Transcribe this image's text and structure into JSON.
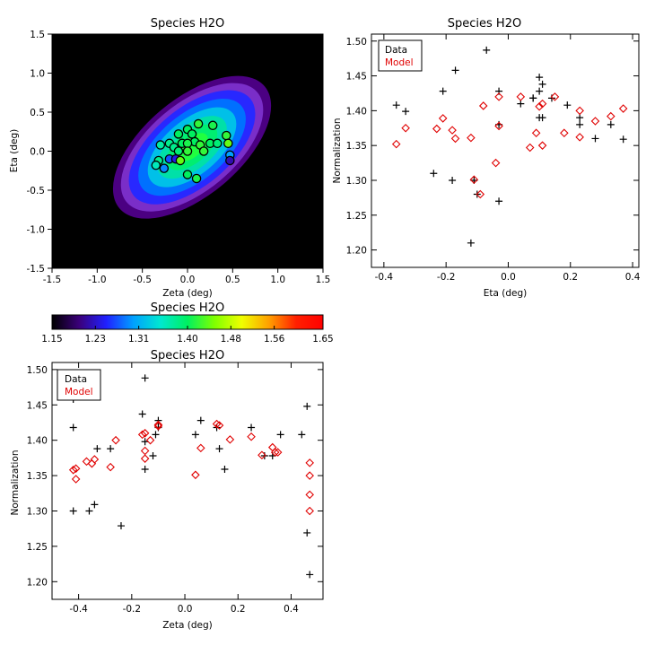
{
  "chart_data": [
    {
      "id": "map",
      "type": "heatmap",
      "title": "Species H2O",
      "xlabel": "Zeta (deg)",
      "ylabel": "Eta (deg)",
      "xlim": [
        -1.5,
        1.5
      ],
      "ylim": [
        -1.5,
        1.5
      ],
      "xticks": [
        -1.5,
        -1.0,
        -0.5,
        0.0,
        0.5,
        1.0,
        1.5
      ],
      "yticks": [
        -1.5,
        -1.0,
        -0.5,
        0.0,
        0.5,
        1.0,
        1.5
      ],
      "xtick_labels": [
        "-1.5",
        "-1.0",
        "-0.5",
        "0.0",
        "0.5",
        "1.0",
        "1.5"
      ],
      "ytick_labels": [
        "-1.5",
        "-1.0",
        "-0.5",
        "0.0",
        "0.5",
        "1.0",
        "1.5"
      ],
      "model": {
        "center": [
          0.05,
          0.05
        ],
        "outer_semi_axes": [
          1.05,
          0.62
        ],
        "angle_deg": 40,
        "levels": [
          {
            "frac": 1.0,
            "color": "#4b0082"
          },
          {
            "frac": 0.9,
            "color": "#7a2ec8"
          },
          {
            "frac": 0.8,
            "color": "#2828ff"
          },
          {
            "frac": 0.68,
            "color": "#0070ff"
          },
          {
            "frac": 0.56,
            "color": "#00c0e8"
          },
          {
            "frac": 0.44,
            "color": "#00e0a8"
          },
          {
            "frac": 0.32,
            "color": "#00ee70"
          },
          {
            "frac": 0.2,
            "color": "#20ff40"
          }
        ]
      },
      "points": [
        {
          "zeta": 0.0,
          "eta": 0.28,
          "value": 1.4
        },
        {
          "zeta": 0.05,
          "eta": 0.22,
          "value": 1.4
        },
        {
          "zeta": 0.12,
          "eta": 0.35,
          "value": 1.42
        },
        {
          "zeta": 0.28,
          "eta": 0.33,
          "value": 1.41
        },
        {
          "zeta": 0.08,
          "eta": 0.12,
          "value": 1.4
        },
        {
          "zeta": 0.14,
          "eta": 0.08,
          "value": 1.42
        },
        {
          "zeta": -0.1,
          "eta": 0.22,
          "value": 1.4
        },
        {
          "zeta": -0.2,
          "eta": 0.1,
          "value": 1.38
        },
        {
          "zeta": -0.3,
          "eta": 0.08,
          "value": 1.37
        },
        {
          "zeta": -0.15,
          "eta": 0.05,
          "value": 1.38
        },
        {
          "zeta": -0.1,
          "eta": 0.0,
          "value": 1.39
        },
        {
          "zeta": -0.06,
          "eta": 0.1,
          "value": 1.4
        },
        {
          "zeta": 0.0,
          "eta": 0.1,
          "value": 1.41
        },
        {
          "zeta": 0.0,
          "eta": 0.0,
          "value": 1.42
        },
        {
          "zeta": 0.18,
          "eta": 0.0,
          "value": 1.42
        },
        {
          "zeta": 0.25,
          "eta": 0.1,
          "value": 1.4
        },
        {
          "zeta": 0.33,
          "eta": 0.1,
          "value": 1.39
        },
        {
          "zeta": 0.43,
          "eta": 0.2,
          "value": 1.42
        },
        {
          "zeta": 0.45,
          "eta": 0.1,
          "value": 1.44
        },
        {
          "zeta": -0.32,
          "eta": -0.12,
          "value": 1.38
        },
        {
          "zeta": -0.35,
          "eta": -0.18,
          "value": 1.36
        },
        {
          "zeta": -0.26,
          "eta": -0.22,
          "value": 1.29
        },
        {
          "zeta": -0.2,
          "eta": -0.1,
          "value": 1.27
        },
        {
          "zeta": -0.13,
          "eta": -0.1,
          "value": 1.24
        },
        {
          "zeta": -0.08,
          "eta": -0.12,
          "value": 1.44
        },
        {
          "zeta": 0.0,
          "eta": -0.3,
          "value": 1.4
        },
        {
          "zeta": 0.1,
          "eta": -0.35,
          "value": 1.41
        },
        {
          "zeta": 0.47,
          "eta": -0.05,
          "value": 1.3
        },
        {
          "zeta": 0.47,
          "eta": -0.12,
          "value": 1.22
        }
      ]
    },
    {
      "id": "colorbar",
      "type": "colorbar",
      "title": "Species H2O",
      "range": [
        1.15,
        1.65
      ],
      "ticks": [
        1.15,
        1.23,
        1.31,
        1.4,
        1.48,
        1.56,
        1.65
      ],
      "tick_labels": [
        "1.15",
        "1.23",
        "1.31",
        "1.40",
        "1.48",
        "1.56",
        "1.65"
      ],
      "colors": [
        "#000000",
        "#3a007a",
        "#2020ff",
        "#00a0ff",
        "#00e8d0",
        "#00f060",
        "#80ff00",
        "#f0ff00",
        "#ffa000",
        "#ff2000",
        "#ff0000"
      ]
    },
    {
      "id": "eta_plot",
      "type": "scatter",
      "title": "Species H2O",
      "xlabel": "Eta (deg)",
      "ylabel": "Normalization",
      "xlim": [
        -0.44,
        0.42
      ],
      "ylim": [
        1.175,
        1.51
      ],
      "xticks": [
        -0.4,
        -0.2,
        0.0,
        0.2,
        0.4
      ],
      "yticks": [
        1.2,
        1.25,
        1.3,
        1.35,
        1.4,
        1.45,
        1.5
      ],
      "xtick_labels": [
        "-0.4",
        "-0.2",
        "0.0",
        "0.2",
        "0.4"
      ],
      "ytick_labels": [
        "1.20",
        "1.25",
        "1.30",
        "1.35",
        "1.40",
        "1.45",
        "1.50"
      ],
      "legend": {
        "position": "top-left",
        "entries": [
          {
            "label": "Data",
            "color": "#000000"
          },
          {
            "label": "Model",
            "color": "#e00000"
          }
        ]
      },
      "series": [
        {
          "name": "Data",
          "marker": "plus",
          "color": "#000000",
          "x": [
            -0.36,
            -0.33,
            -0.24,
            -0.21,
            -0.18,
            -0.17,
            -0.12,
            -0.11,
            -0.1,
            -0.07,
            -0.03,
            -0.03,
            -0.03,
            0.04,
            0.08,
            0.08,
            0.1,
            0.1,
            0.1,
            0.11,
            0.11,
            0.14,
            0.19,
            0.23,
            0.23,
            0.28,
            0.33,
            0.37
          ],
          "y": [
            1.408,
            1.399,
            1.31,
            1.428,
            1.3,
            1.458,
            1.21,
            1.3,
            1.28,
            1.487,
            1.27,
            1.38,
            1.428,
            1.41,
            1.418,
            1.418,
            1.448,
            1.428,
            1.39,
            1.438,
            1.39,
            1.418,
            1.408,
            1.39,
            1.38,
            1.36,
            1.38,
            1.359
          ]
        },
        {
          "name": "Model",
          "marker": "diamond",
          "color": "#e00000",
          "x": [
            -0.36,
            -0.33,
            -0.23,
            -0.21,
            -0.18,
            -0.17,
            -0.12,
            -0.11,
            -0.09,
            -0.08,
            -0.04,
            -0.03,
            -0.03,
            0.04,
            0.07,
            0.09,
            0.1,
            0.11,
            0.11,
            0.15,
            0.18,
            0.23,
            0.23,
            0.28,
            0.33,
            0.37
          ],
          "y": [
            1.352,
            1.375,
            1.374,
            1.389,
            1.372,
            1.36,
            1.361,
            1.301,
            1.28,
            1.407,
            1.325,
            1.42,
            1.378,
            1.42,
            1.347,
            1.368,
            1.406,
            1.41,
            1.35,
            1.42,
            1.368,
            1.4,
            1.362,
            1.385,
            1.392,
            1.403
          ]
        }
      ]
    },
    {
      "id": "zeta_plot",
      "type": "scatter",
      "title": "Species H2O",
      "xlabel": "Zeta (deg)",
      "ylabel": "Normalization",
      "xlim": [
        -0.5,
        0.52
      ],
      "ylim": [
        1.175,
        1.51
      ],
      "xticks": [
        -0.4,
        -0.2,
        0.0,
        0.2,
        0.4
      ],
      "yticks": [
        1.2,
        1.25,
        1.3,
        1.35,
        1.4,
        1.45,
        1.5
      ],
      "xtick_labels": [
        "-0.4",
        "-0.2",
        "0.0",
        "0.2",
        "0.4"
      ],
      "ytick_labels": [
        "1.20",
        "1.25",
        "1.30",
        "1.35",
        "1.40",
        "1.45",
        "1.50"
      ],
      "legend": {
        "position": "top-left",
        "entries": [
          {
            "label": "Data",
            "color": "#000000"
          },
          {
            "label": "Model",
            "color": "#e00000"
          }
        ]
      },
      "series": [
        {
          "name": "Data",
          "marker": "plus",
          "color": "#000000",
          "x": [
            -0.42,
            -0.42,
            -0.42,
            -0.36,
            -0.34,
            -0.33,
            -0.28,
            -0.24,
            -0.16,
            -0.15,
            -0.15,
            -0.15,
            -0.12,
            -0.11,
            -0.1,
            -0.1,
            0.04,
            0.06,
            0.12,
            0.13,
            0.15,
            0.25,
            0.3,
            0.33,
            0.36,
            0.44,
            0.46,
            0.46,
            0.47
          ],
          "y": [
            1.458,
            1.418,
            1.3,
            1.3,
            1.309,
            1.388,
            1.388,
            1.279,
            1.437,
            1.488,
            1.398,
            1.359,
            1.378,
            1.408,
            1.428,
            1.418,
            1.408,
            1.428,
            1.418,
            1.388,
            1.359,
            1.418,
            1.378,
            1.378,
            1.408,
            1.408,
            1.448,
            1.269,
            1.21
          ]
        },
        {
          "name": "Model",
          "marker": "diamond",
          "color": "#e00000",
          "x": [
            -0.42,
            -0.41,
            -0.41,
            -0.37,
            -0.35,
            -0.34,
            -0.28,
            -0.26,
            -0.16,
            -0.15,
            -0.15,
            -0.15,
            -0.13,
            -0.1,
            -0.1,
            0.04,
            0.06,
            0.12,
            0.13,
            0.17,
            0.25,
            0.29,
            0.33,
            0.34,
            0.35,
            0.47,
            0.47,
            0.47,
            0.47
          ],
          "y": [
            1.358,
            1.345,
            1.36,
            1.37,
            1.367,
            1.373,
            1.362,
            1.4,
            1.408,
            1.41,
            1.385,
            1.374,
            1.4,
            1.42,
            1.422,
            1.351,
            1.389,
            1.423,
            1.421,
            1.401,
            1.405,
            1.379,
            1.39,
            1.383,
            1.383,
            1.35,
            1.323,
            1.3,
            1.368
          ]
        }
      ]
    }
  ]
}
